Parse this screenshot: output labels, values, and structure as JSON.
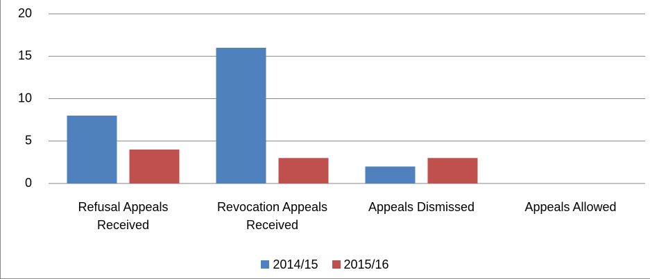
{
  "chart_data": {
    "type": "bar",
    "categories": [
      "Refusal Appeals Received",
      "Revocation Appeals Received",
      "Appeals Dismissed",
      "Appeals Allowed"
    ],
    "series": [
      {
        "name": "2014/15",
        "color": "#4f81bd",
        "values": [
          8,
          16,
          2,
          0
        ]
      },
      {
        "name": "2015/16",
        "color": "#c0504d",
        "values": [
          4,
          3,
          3,
          0
        ]
      }
    ],
    "ylim": [
      0,
      20
    ],
    "yticks": [
      0,
      5,
      10,
      15,
      20
    ],
    "grid": true
  }
}
